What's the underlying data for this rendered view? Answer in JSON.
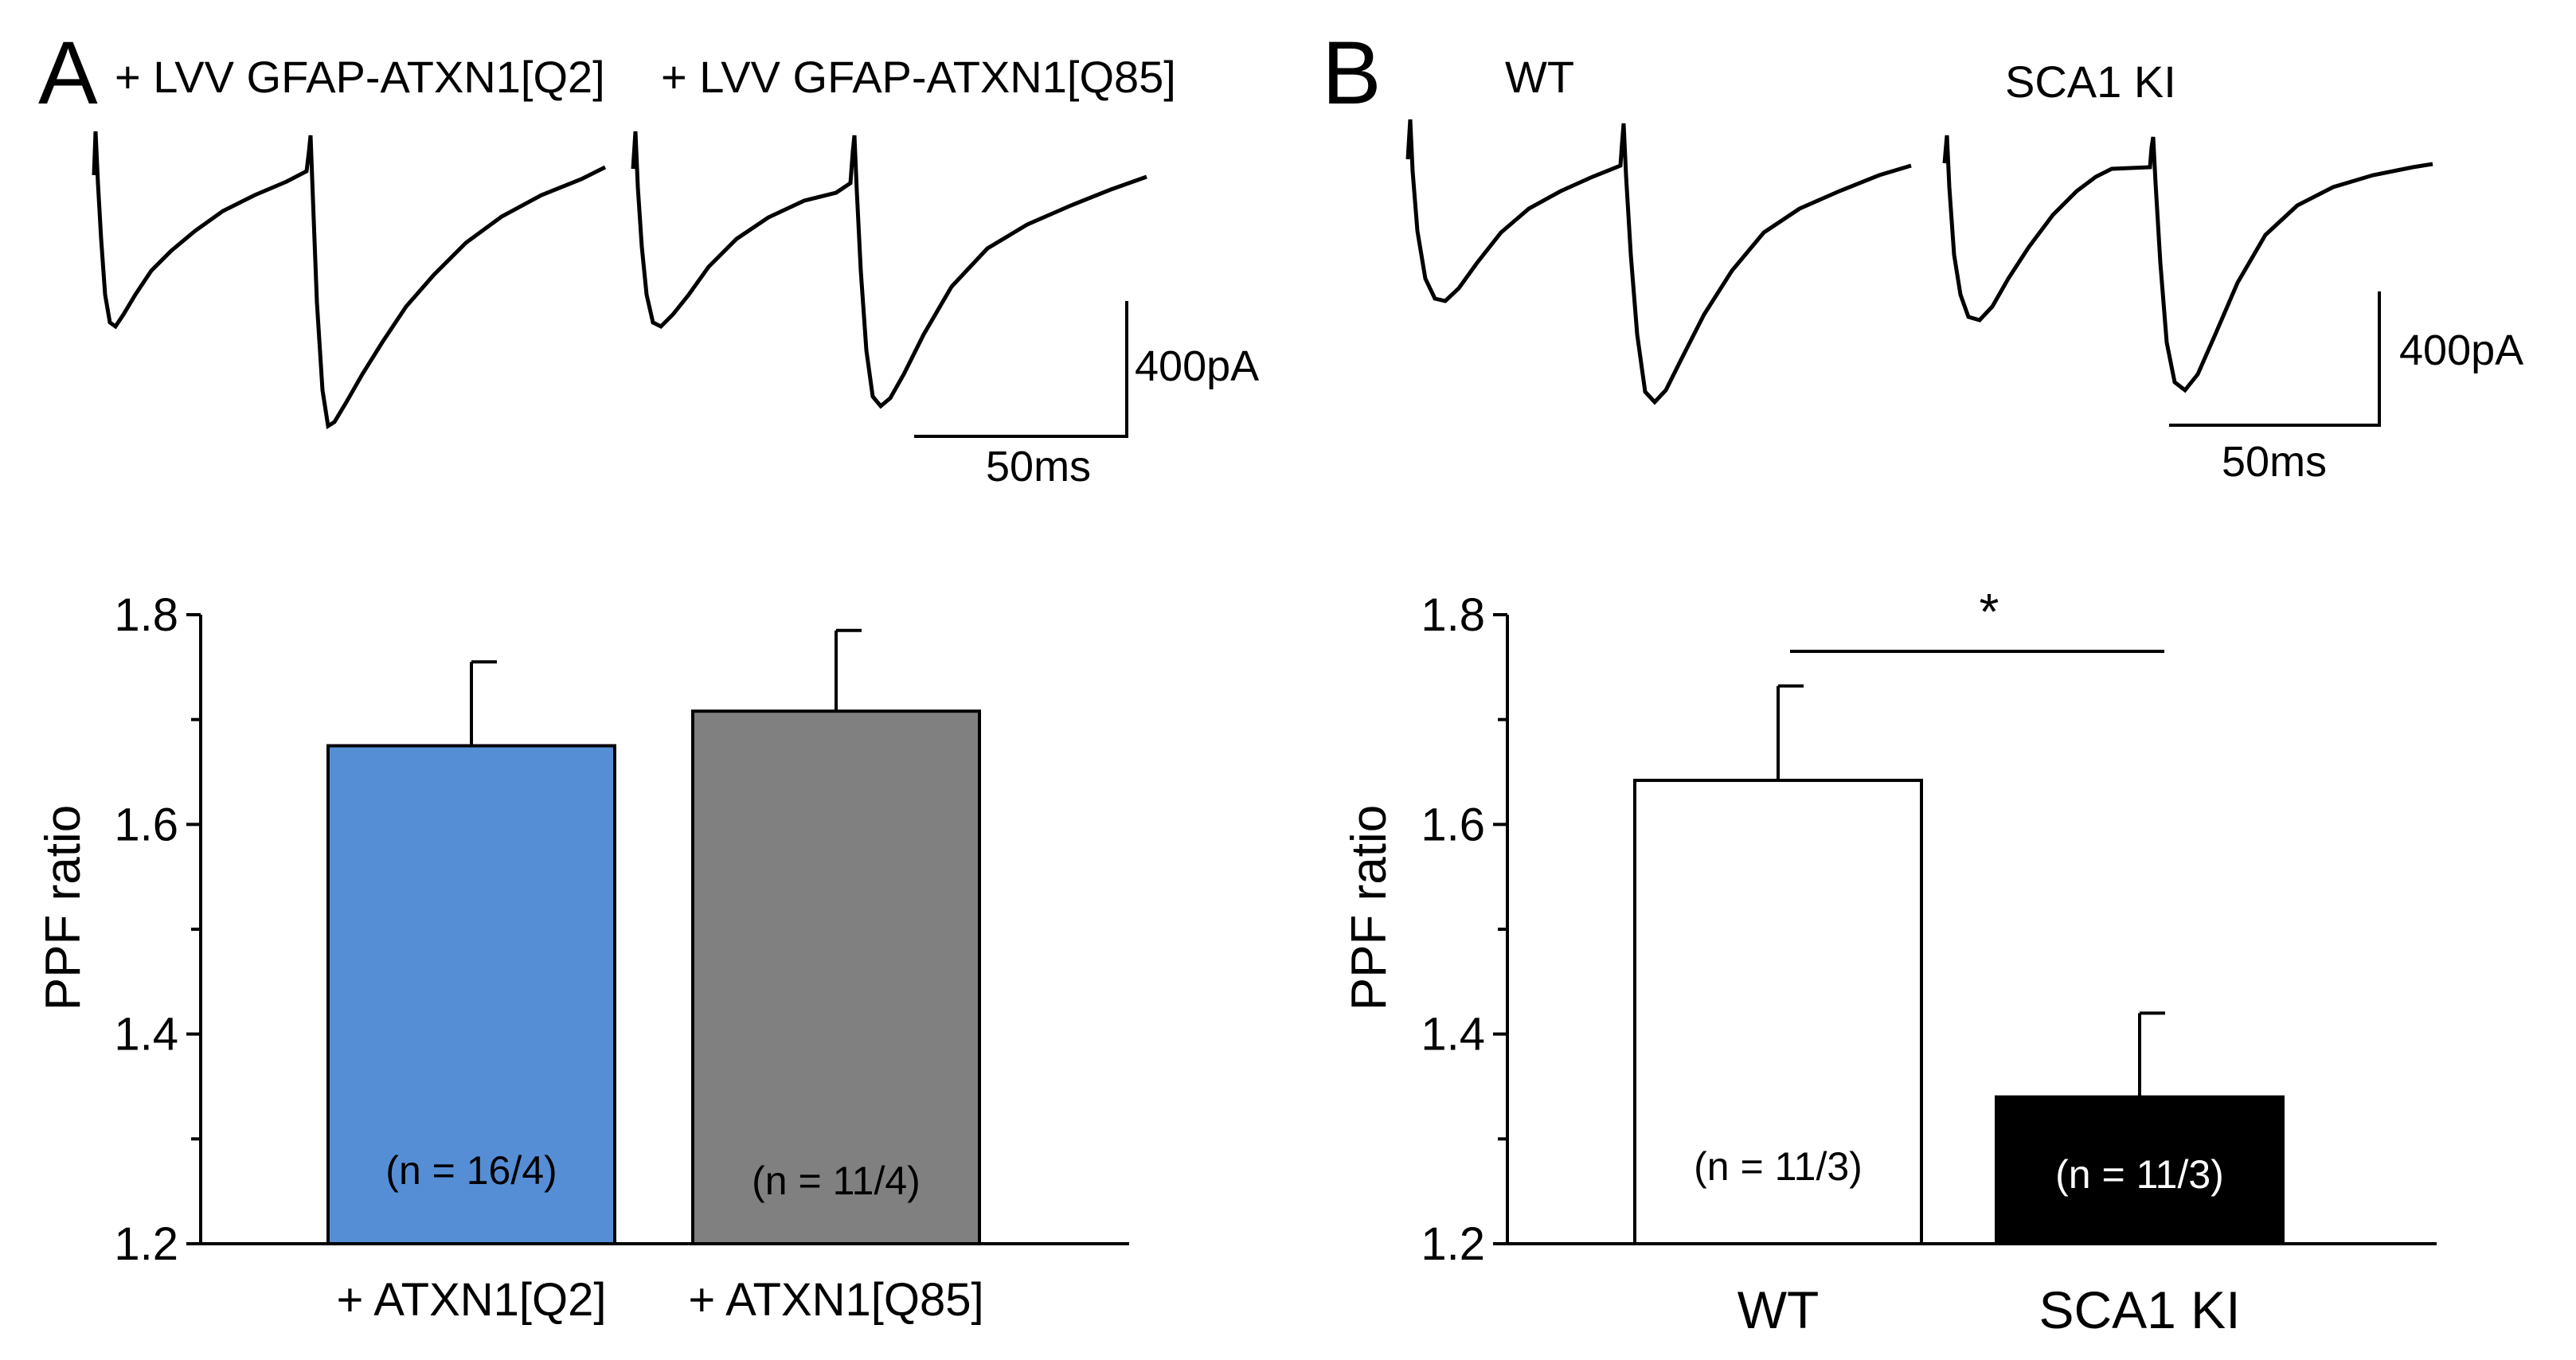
{
  "colors": {
    "background": "#ffffff",
    "trace": "#000000",
    "axis": "#000000",
    "q2_bar": "#558ed5",
    "q85_bar": "#808080",
    "wt_bar": "#ffffff",
    "sca1_bar": "#000000"
  },
  "panel_a": {
    "letter": "A",
    "trace_labels": [
      "+ LVV GFAP-ATXN1[Q2]",
      "+ LVV GFAP-ATXN1[Q85]"
    ],
    "scale_current": "400pA",
    "scale_time": "50ms"
  },
  "panel_b": {
    "letter": "B",
    "trace_labels": [
      "WT",
      "SCA1 KI"
    ],
    "scale_current": "400pA",
    "scale_time": "50ms",
    "significance": "*"
  },
  "chart_data": [
    {
      "type": "bar",
      "panel": "A",
      "categories": [
        "+ ATXN1[Q2]",
        "+ ATXN1[Q85]"
      ],
      "values": [
        1.675,
        1.708
      ],
      "errors": [
        0.08,
        0.077
      ],
      "n_labels": [
        "(n = 16/4)",
        "(n = 11/4)"
      ],
      "bar_colors": [
        "#558ed5",
        "#808080"
      ],
      "title": "",
      "xlabel": "",
      "ylabel": "PPF ratio",
      "ylim": [
        1.2,
        1.8
      ],
      "yticks": [
        1.2,
        1.4,
        1.6,
        1.8
      ],
      "ytick_labels": [
        "1.2",
        "1.4",
        "1.6",
        "1.8"
      ],
      "grid": false,
      "legend": "none"
    },
    {
      "type": "bar",
      "panel": "B",
      "categories": [
        "WT",
        "SCA1 KI"
      ],
      "values": [
        1.642,
        1.34
      ],
      "errors": [
        0.09,
        0.08
      ],
      "n_labels": [
        "(n = 11/3)",
        "(n = 11/3)"
      ],
      "bar_colors": [
        "#ffffff",
        "#000000"
      ],
      "title": "",
      "xlabel": "",
      "ylabel": "PPF ratio",
      "ylim": [
        1.2,
        1.8
      ],
      "yticks": [
        1.2,
        1.4,
        1.6,
        1.8
      ],
      "ytick_labels": [
        "1.2",
        "1.4",
        "1.6",
        "1.8"
      ],
      "significance": "*",
      "grid": false,
      "legend": "none"
    }
  ]
}
